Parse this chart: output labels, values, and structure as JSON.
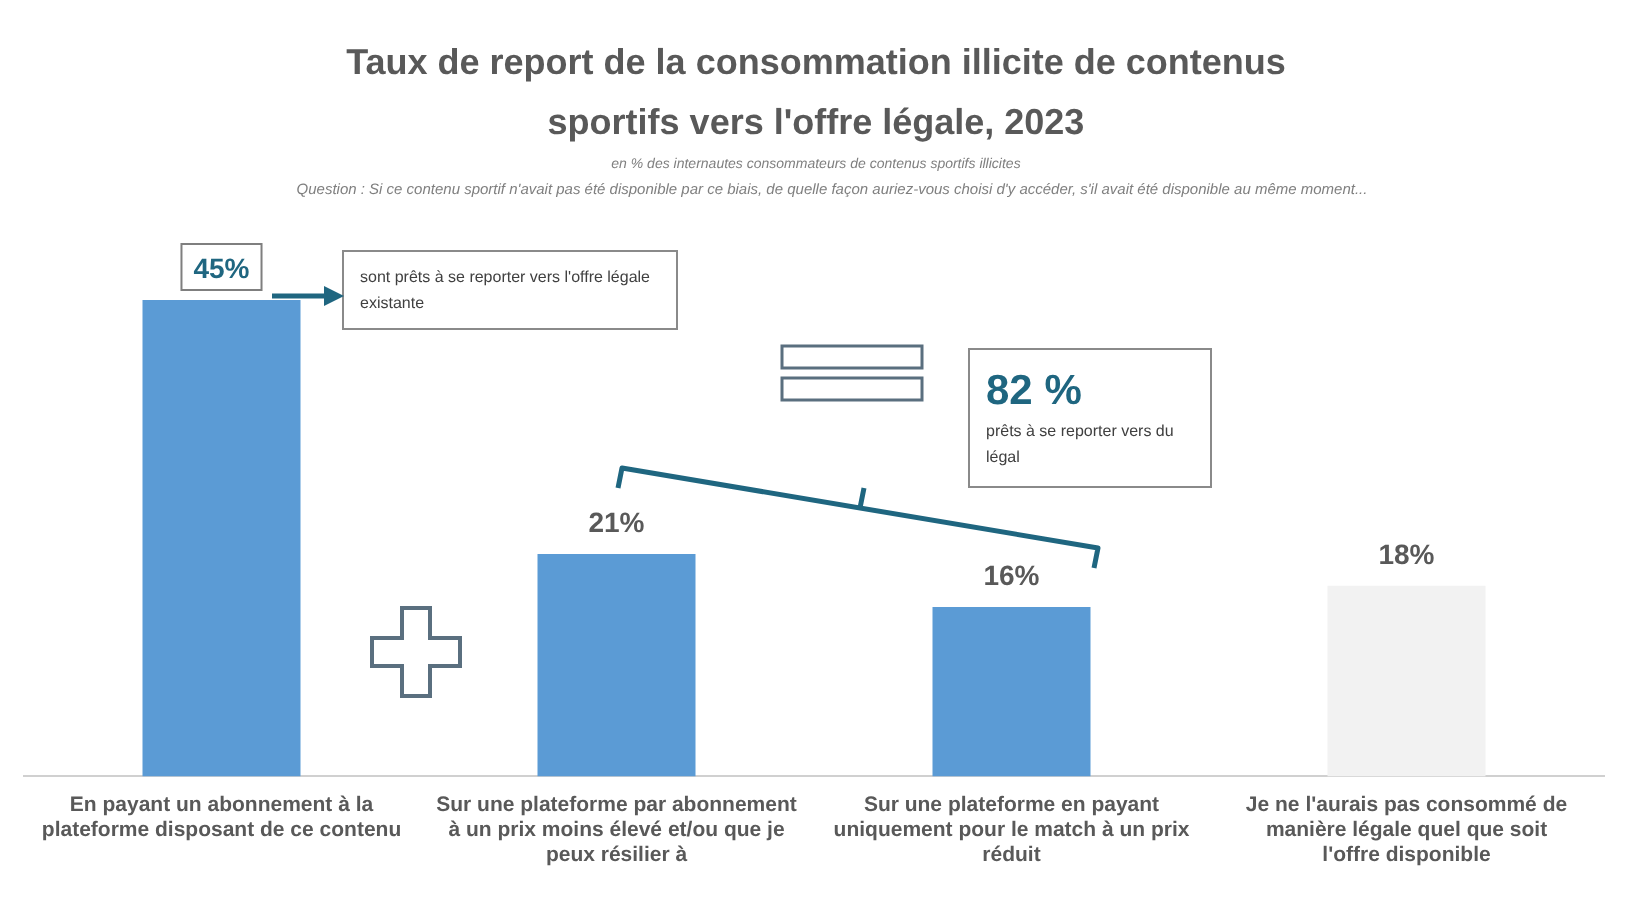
{
  "chart_data": {
    "type": "bar",
    "title": "Taux de report de la consommation illicite de contenus sportifs vers l'offre légale, 2023",
    "subtitle": "en % des internautes consommateurs de contenus sportifs illicites",
    "categories": [
      "En payant un abonnement à la plateforme disposant de ce contenu",
      "Sur une plateforme par abonnement à un prix moins élevé et/ou que je peux résilier à",
      "Sur une plateforme en payant uniquement pour le match à un prix réduit",
      "Je ne l'aurais pas consommé de manière légale quel que soit l'offre disponible"
    ],
    "values": [
      45,
      21,
      16,
      18
    ],
    "colors": [
      "#5b9bd5",
      "#5b9bd5",
      "#5b9bd5",
      "#f2f2f2"
    ],
    "value_labels": [
      "45%",
      "21%",
      "16%",
      "18%"
    ],
    "tick_labels": "x",
    "grid": false,
    "legend": false,
    "annotations": [
      "Question : Si ce contenu sportif n'avait pas été disponible par ce biais, de quelle façon auriez-vous choisi d'y accéder, s'il avait été disponible au même moment...",
      "sont prêts à se reporter vers l'offre légale existante",
      "82 % prêts à se reporter vers du légal"
    ]
  }
}
